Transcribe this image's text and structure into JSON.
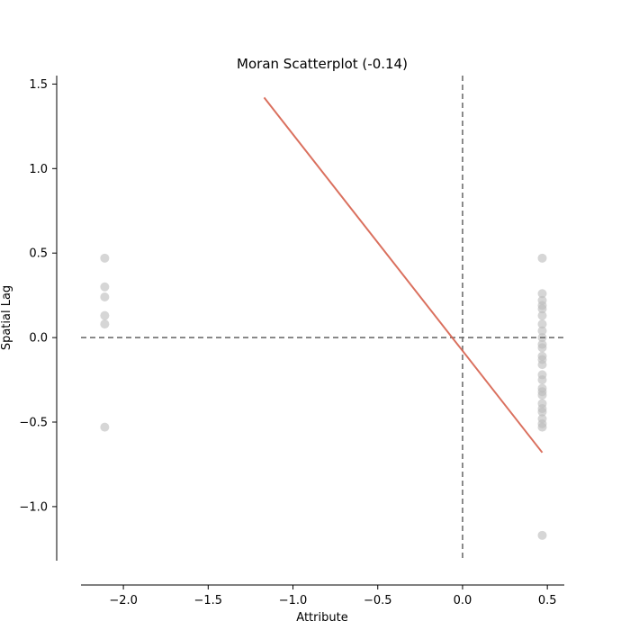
{
  "chart_data": {
    "type": "scatter",
    "title": "Moran Scatterplot (-0.14)",
    "xlabel": "Attribute",
    "ylabel": "Spatial Lag",
    "xlim": [
      -2.25,
      0.6
    ],
    "ylim": [
      -1.32,
      1.55
    ],
    "xticks": [
      -2.0,
      -1.5,
      -1.0,
      -0.5,
      0.0,
      0.5
    ],
    "yticks": [
      -1.0,
      -0.5,
      0.0,
      0.5,
      1.0,
      1.5
    ],
    "xtick_labels": [
      "−2.0",
      "−1.5",
      "−1.0",
      "−0.5",
      "0.0",
      "0.5"
    ],
    "ytick_labels": [
      "−1.0",
      "−0.5",
      "0.0",
      "0.5",
      "1.0",
      "1.5"
    ],
    "grid": false,
    "colors": {
      "points": "#bababa",
      "fit_line": "#d6604d",
      "reference_lines": "#6e6e6e"
    },
    "points": [
      {
        "x": -2.11,
        "y": 0.47
      },
      {
        "x": -2.11,
        "y": 0.3
      },
      {
        "x": -2.11,
        "y": 0.24
      },
      {
        "x": -2.11,
        "y": 0.13
      },
      {
        "x": -2.11,
        "y": 0.08
      },
      {
        "x": -2.11,
        "y": -0.53
      },
      {
        "x": 0.47,
        "y": 0.47
      },
      {
        "x": 0.47,
        "y": 0.26
      },
      {
        "x": 0.47,
        "y": 0.22
      },
      {
        "x": 0.47,
        "y": 0.19
      },
      {
        "x": 0.47,
        "y": 0.17
      },
      {
        "x": 0.47,
        "y": 0.13
      },
      {
        "x": 0.47,
        "y": 0.08
      },
      {
        "x": 0.47,
        "y": 0.04
      },
      {
        "x": 0.47,
        "y": 0.0
      },
      {
        "x": 0.47,
        "y": -0.04
      },
      {
        "x": 0.47,
        "y": -0.06
      },
      {
        "x": 0.47,
        "y": -0.11
      },
      {
        "x": 0.47,
        "y": -0.13
      },
      {
        "x": 0.47,
        "y": -0.16
      },
      {
        "x": 0.47,
        "y": -0.22
      },
      {
        "x": 0.47,
        "y": -0.25
      },
      {
        "x": 0.47,
        "y": -0.3
      },
      {
        "x": 0.47,
        "y": -0.32
      },
      {
        "x": 0.47,
        "y": -0.34
      },
      {
        "x": 0.47,
        "y": -0.39
      },
      {
        "x": 0.47,
        "y": -0.42
      },
      {
        "x": 0.47,
        "y": -0.44
      },
      {
        "x": 0.47,
        "y": -0.48
      },
      {
        "x": 0.47,
        "y": -0.51
      },
      {
        "x": 0.47,
        "y": -0.53
      },
      {
        "x": 0.47,
        "y": -1.17
      }
    ],
    "fit_line": {
      "x": [
        -1.17,
        0.47
      ],
      "y": [
        1.42,
        -0.68
      ]
    },
    "reference_lines": {
      "x": 0.0,
      "y": 0.0
    }
  }
}
